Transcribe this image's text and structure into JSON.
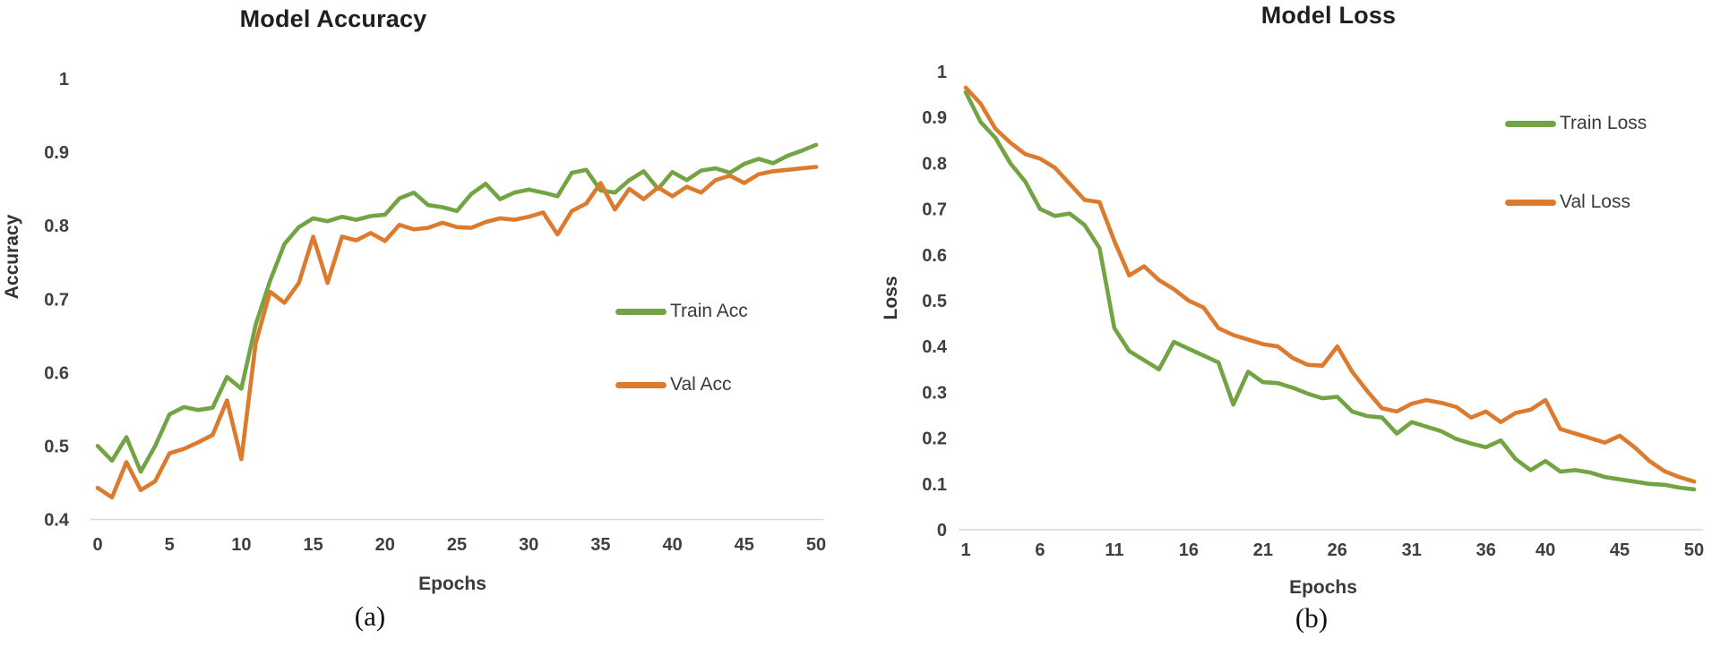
{
  "figure": {
    "background": "#ffffff",
    "captions": [
      "(a)",
      "(b)"
    ]
  },
  "colors": {
    "train_green": "#72a444",
    "val_orange": "#dc7a2e",
    "gridline": "#d9d9d9"
  },
  "chart_data": [
    {
      "type": "line",
      "title": "Model Accuracy",
      "xlabel": "Epochs",
      "ylabel": "Accuracy",
      "caption": "(a)",
      "xlim": [
        0,
        50
      ],
      "ylim": [
        0.4,
        1.0
      ],
      "grid": "single light baseline gridline at y=0.4 only",
      "legend_position": "inside plot, center-right",
      "x_ticks": [
        "0",
        "5",
        "10",
        "15",
        "20",
        "25",
        "30",
        "35",
        "40",
        "45",
        "50"
      ],
      "y_ticks": [
        "1",
        "0.9",
        "0.8",
        "0.7",
        "0.6",
        "0.5",
        "0.4"
      ],
      "x": [
        0,
        1,
        2,
        3,
        4,
        5,
        6,
        7,
        8,
        9,
        10,
        11,
        12,
        13,
        14,
        15,
        16,
        17,
        18,
        19,
        20,
        21,
        22,
        23,
        24,
        25,
        26,
        27,
        28,
        29,
        30,
        31,
        32,
        33,
        34,
        35,
        36,
        37,
        38,
        39,
        40,
        41,
        42,
        43,
        44,
        45,
        46,
        47,
        48,
        49,
        50
      ],
      "series": [
        {
          "name": "Train Acc",
          "color": "#72a444",
          "values": [
            0.5,
            0.48,
            0.512,
            0.465,
            0.5,
            0.543,
            0.553,
            0.549,
            0.552,
            0.594,
            0.578,
            0.665,
            0.725,
            0.775,
            0.798,
            0.81,
            0.806,
            0.812,
            0.808,
            0.813,
            0.815,
            0.837,
            0.845,
            0.828,
            0.825,
            0.82,
            0.843,
            0.857,
            0.836,
            0.845,
            0.849,
            0.845,
            0.84,
            0.872,
            0.876,
            0.848,
            0.845,
            0.862,
            0.874,
            0.85,
            0.873,
            0.862,
            0.875,
            0.878,
            0.872,
            0.884,
            0.891,
            0.885,
            0.895,
            0.902,
            0.91
          ]
        },
        {
          "name": "Val Acc",
          "color": "#dc7a2e",
          "values": [
            0.443,
            0.43,
            0.478,
            0.44,
            0.452,
            0.49,
            0.496,
            0.505,
            0.515,
            0.562,
            0.482,
            0.64,
            0.71,
            0.695,
            0.722,
            0.785,
            0.722,
            0.785,
            0.78,
            0.79,
            0.779,
            0.801,
            0.795,
            0.797,
            0.804,
            0.798,
            0.797,
            0.805,
            0.81,
            0.808,
            0.812,
            0.818,
            0.788,
            0.82,
            0.83,
            0.858,
            0.822,
            0.85,
            0.836,
            0.852,
            0.84,
            0.853,
            0.845,
            0.862,
            0.868,
            0.858,
            0.87,
            0.874,
            0.876,
            0.878,
            0.88
          ]
        }
      ]
    },
    {
      "type": "line",
      "title": "Model Loss",
      "xlabel": "Epochs",
      "ylabel": "Loss",
      "caption": "(b)",
      "xlim": [
        1,
        50
      ],
      "ylim": [
        0.0,
        1.0
      ],
      "grid": "single light baseline gridline at y=0 only",
      "legend_position": "inside plot, upper-right",
      "x_ticks": [
        "1",
        "6",
        "11",
        "16",
        "21",
        "26",
        "31",
        "36",
        "40",
        "45",
        "50"
      ],
      "y_ticks": [
        "1",
        "0.9",
        "0.8",
        "0.7",
        "0.6",
        "0.5",
        "0.4",
        "0.3",
        "0.2",
        "0.1",
        "0"
      ],
      "x": [
        1,
        2,
        3,
        4,
        5,
        6,
        7,
        8,
        9,
        10,
        11,
        12,
        13,
        14,
        15,
        16,
        17,
        18,
        19,
        20,
        21,
        22,
        23,
        24,
        25,
        26,
        27,
        28,
        29,
        30,
        31,
        32,
        33,
        34,
        35,
        36,
        37,
        38,
        39,
        40,
        41,
        42,
        43,
        44,
        45,
        46,
        47,
        48,
        49,
        50
      ],
      "series": [
        {
          "name": "Train Loss",
          "color": "#72a444",
          "values": [
            0.955,
            0.89,
            0.855,
            0.8,
            0.76,
            0.7,
            0.685,
            0.69,
            0.665,
            0.615,
            0.44,
            0.39,
            0.37,
            0.35,
            0.41,
            0.395,
            0.38,
            0.365,
            0.273,
            0.345,
            0.322,
            0.32,
            0.31,
            0.297,
            0.287,
            0.29,
            0.258,
            0.248,
            0.245,
            0.21,
            0.235,
            0.225,
            0.215,
            0.198,
            0.188,
            0.18,
            0.195,
            0.154,
            0.13,
            0.15,
            0.127,
            0.13,
            0.125,
            0.115,
            0.11,
            0.105,
            0.1,
            0.098,
            0.092,
            0.088
          ]
        },
        {
          "name": "Val Loss",
          "color": "#dc7a2e",
          "values": [
            0.965,
            0.93,
            0.875,
            0.845,
            0.82,
            0.81,
            0.79,
            0.755,
            0.72,
            0.715,
            0.63,
            0.555,
            0.575,
            0.545,
            0.525,
            0.5,
            0.485,
            0.44,
            0.425,
            0.415,
            0.405,
            0.4,
            0.375,
            0.36,
            0.358,
            0.4,
            0.345,
            0.303,
            0.265,
            0.258,
            0.275,
            0.283,
            0.277,
            0.268,
            0.245,
            0.258,
            0.235,
            0.255,
            0.262,
            0.283,
            0.22,
            0.21,
            0.2,
            0.19,
            0.205,
            0.18,
            0.15,
            0.128,
            0.115,
            0.105
          ]
        }
      ]
    }
  ]
}
